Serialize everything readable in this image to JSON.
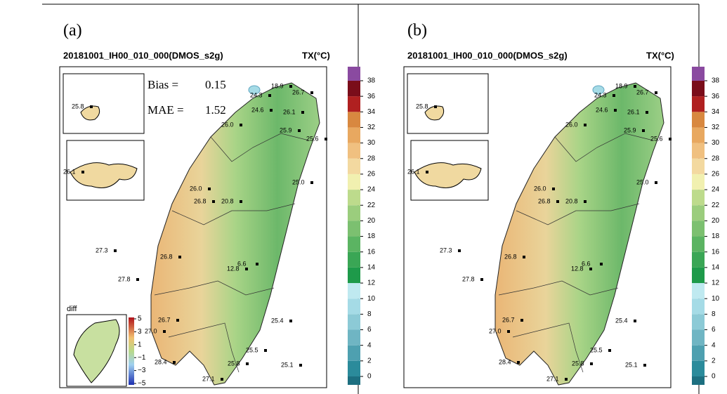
{
  "panels": [
    {
      "label": "(a)",
      "title": "20181001_IH00_010_000(DMOS_s2g)",
      "unit": "TX(°C)",
      "bias_label": "Bias =",
      "bias": 0.15,
      "mae_label": "MAE =",
      "mae": 1.52,
      "stations": [
        "18.9",
        "24.3",
        "26.7",
        "24.6",
        "26.1",
        "26.0",
        "25.9",
        "25.6",
        "26.0",
        "26.8",
        "20.8",
        "25.0",
        "27.3",
        "26.8",
        "6.6",
        "12.8",
        "27.8",
        "26.7",
        "27.0",
        "25.4",
        "25.5",
        "28.4",
        "25.8",
        "25.1",
        "27.1",
        "25.8",
        "26.1"
      ],
      "colorbar_ticks": [
        0,
        2,
        4,
        6,
        8,
        10,
        12,
        14,
        16,
        18,
        20,
        22,
        24,
        26,
        28,
        30,
        32,
        34,
        36,
        38
      ],
      "diff": {
        "label": "diff",
        "ticks": [
          5,
          3,
          1,
          {
            "value": -1,
            "label": "−1"
          },
          {
            "value": -3,
            "label": "−3"
          },
          {
            "value": -5,
            "label": "−5"
          }
        ]
      }
    },
    {
      "label": "(b)",
      "title": "20181001_IH00_010_000(DMOS_s2g)",
      "unit": "TX(°C)",
      "stations": [
        "18.9",
        "24.3",
        "26.7",
        "24.6",
        "26.1",
        "26.0",
        "25.9",
        "25.6",
        "26.0",
        "26.8",
        "20.8",
        "25.0",
        "27.3",
        "26.8",
        "6.6",
        "12.8",
        "27.8",
        "26.7",
        "27.0",
        "25.4",
        "25.5",
        "28.4",
        "25.8",
        "25.1",
        "27.1",
        "25.8",
        "26.1"
      ],
      "colorbar_ticks": [
        0,
        2,
        4,
        6,
        8,
        10,
        12,
        14,
        16,
        18,
        20,
        22,
        24,
        26,
        28,
        30,
        32,
        34,
        36,
        38
      ]
    }
  ]
}
